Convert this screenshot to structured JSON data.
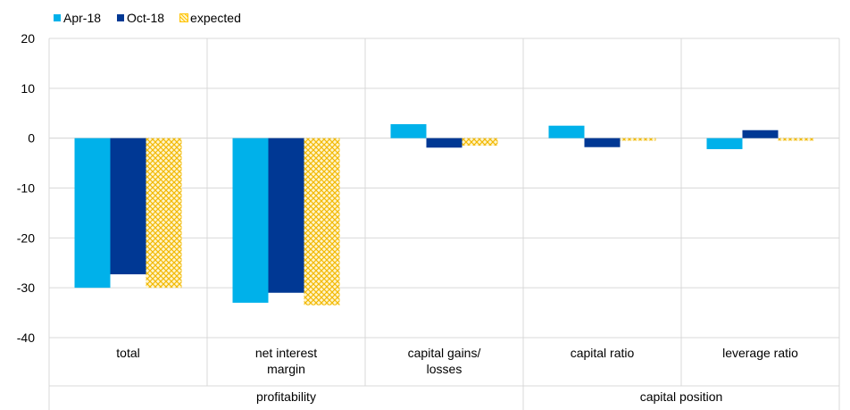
{
  "chart_data": {
    "type": "bar",
    "categories": [
      "total",
      "net interest margin",
      "capital gains/ losses",
      "capital ratio",
      "leverage ratio"
    ],
    "category_label_lines": [
      [
        "total"
      ],
      [
        "net interest",
        "margin"
      ],
      [
        "capital gains/",
        "losses"
      ],
      [
        "capital ratio"
      ],
      [
        "leverage ratio"
      ]
    ],
    "groups": [
      {
        "label": "profitability",
        "categories": [
          "total",
          "net interest margin",
          "capital gains/ losses"
        ]
      },
      {
        "label": "capital position",
        "categories": [
          "capital ratio",
          "leverage ratio"
        ]
      }
    ],
    "series": [
      {
        "name": "Apr-18",
        "color": "#00b1ea",
        "pattern": "solid",
        "values": [
          -30.0,
          -33.0,
          2.8,
          2.5,
          -2.2
        ]
      },
      {
        "name": "Oct-18",
        "color": "#003894",
        "pattern": "solid",
        "values": [
          -27.3,
          -31.0,
          -1.9,
          -1.8,
          1.6
        ]
      },
      {
        "name": "expected",
        "color": "#ffc300",
        "pattern": "lattice",
        "values": [
          -30.0,
          -33.5,
          -1.5,
          -0.5,
          -0.5
        ]
      }
    ],
    "ylim": [
      -40,
      20
    ],
    "yticks": [
      -40,
      -30,
      -20,
      -10,
      0,
      10,
      20
    ],
    "grid": true,
    "legend": "top-left",
    "title": "",
    "xlabel": "",
    "ylabel": ""
  }
}
